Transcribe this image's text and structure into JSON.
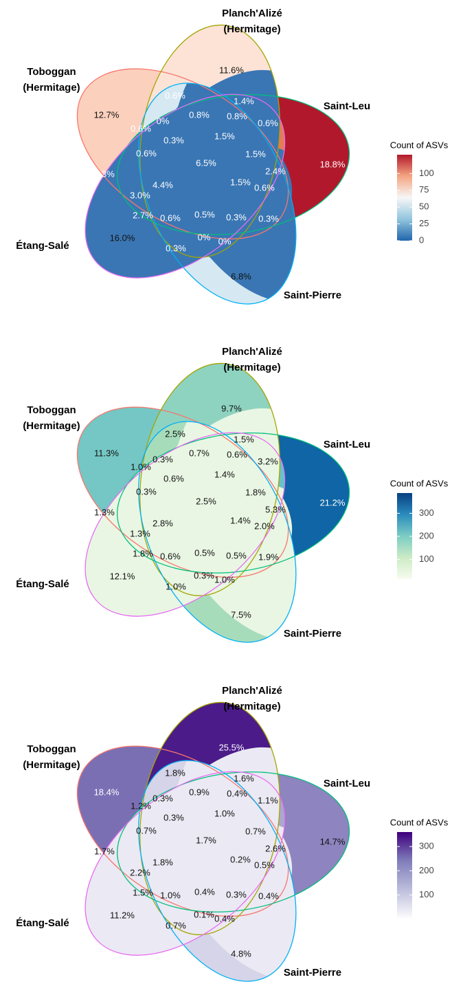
{
  "chart_data": [
    {
      "type": "venn",
      "sets": [
        {
          "name": [
            "Toboggan",
            "(Hermitage)"
          ],
          "color": "#f8766d",
          "fill": "#fbd0bd"
        },
        {
          "name": [
            "Planch'Alizé",
            "(Hermitage)"
          ],
          "color": "#a3a500",
          "fill": "#fce3d6"
        },
        {
          "name": [
            "Saint-Leu"
          ],
          "color": "#00bf7d",
          "fill": "#b2182b"
        },
        {
          "name": [
            "Étang-Salé"
          ],
          "color": "#00b0f6",
          "fill": "#d6e8f1"
        },
        {
          "name": [
            "Saint-Pierre"
          ],
          "color": "#e76bf3",
          "fill": "#e8795a"
        }
      ],
      "overlap_color": "#3a76b4",
      "values": [
        12.7,
        11.6,
        18.8,
        6.8,
        16.0,
        0.6,
        1.4,
        0.8,
        0.6,
        0.6,
        0,
        0.8,
        0.3,
        1.5,
        1.5,
        0.6,
        6.5,
        2.3,
        4.4,
        1.5,
        2.4,
        0.6,
        3.0,
        2.7,
        0.6,
        0.5,
        0.3,
        0.3,
        0.3,
        0,
        0
      ],
      "value_labels": [
        "12.7%",
        "11.6%",
        "18.8%",
        "6.8%",
        "16.0%",
        "0.6%",
        "1.4%",
        "0.8%",
        "0.6%",
        "0.6%",
        "0%",
        "0.8%",
        "0.3%",
        "1.5%",
        "1.5%",
        "0.6%",
        "6.5%",
        "2.3%",
        "4.4%",
        "1.5%",
        "2.4%",
        "0.6%",
        "3.0%",
        "2.7%",
        "0.6%",
        "0.5%",
        "0.3%",
        "0.3%",
        "0.3%",
        "0%",
        "0%"
      ],
      "legend": {
        "title": "Count of ASVs",
        "colors": [
          "#2166ac",
          "#92c5de",
          "#f7f7f7",
          "#f4a582",
          "#b2182b"
        ],
        "lim": [
          0,
          128
        ],
        "ticks": [
          0,
          25,
          50,
          75,
          100
        ]
      }
    },
    {
      "type": "venn",
      "sets": [
        {
          "name": [
            "Toboggan",
            "(Hermitage)"
          ],
          "color": "#f8766d",
          "fill": "#74c7c4"
        },
        {
          "name": [
            "Planch'Alizé",
            "(Hermitage)"
          ],
          "color": "#a3a500",
          "fill": "#8ed3c0"
        },
        {
          "name": [
            "Saint-Leu"
          ],
          "color": "#00bf7d",
          "fill": "#0f65a5"
        },
        {
          "name": [
            "Étang-Salé"
          ],
          "color": "#00b0f6",
          "fill": "#a7dcbb"
        },
        {
          "name": [
            "Saint-Pierre"
          ],
          "color": "#e76bf3",
          "fill": "#6ac2c8"
        }
      ],
      "overlap_color": "#e9f6e3",
      "values": [
        11.3,
        9.7,
        21.2,
        7.5,
        12.1,
        2.5,
        1.5,
        0.6,
        3.2,
        1.0,
        0.3,
        0.7,
        0.6,
        1.4,
        1.8,
        0.3,
        2.5,
        1.3,
        2.8,
        1.4,
        5.3,
        2.0,
        1.3,
        1.8,
        0.6,
        0.5,
        0.5,
        1.9,
        1.0,
        0.3,
        1.0
      ],
      "value_labels": [
        "11.3%",
        "9.7%",
        "21.2%",
        "7.5%",
        "12.1%",
        "2.5%",
        "1.5%",
        "0.6%",
        "3.2%",
        "1.0%",
        "0.3%",
        "0.7%",
        "0.6%",
        "1.4%",
        "1.8%",
        "0.3%",
        "2.5%",
        "1.3%",
        "2.8%",
        "1.4%",
        "5.3%",
        "2.0%",
        "1.3%",
        "1.8%",
        "0.6%",
        "0.5%",
        "0.5%",
        "1.9%",
        "1.0%",
        "0.3%",
        "1.0%"
      ],
      "legend": {
        "title": "Count of ASVs",
        "colors": [
          "#f7fcf0",
          "#ccebc5",
          "#7bccc4",
          "#2b8cbe",
          "#084081"
        ],
        "lim": [
          15,
          388
        ],
        "ticks": [
          100,
          200,
          300
        ]
      }
    },
    {
      "type": "venn",
      "sets": [
        {
          "name": [
            "Toboggan",
            "(Hermitage)"
          ],
          "color": "#f8766d",
          "fill": "#7b6fb4"
        },
        {
          "name": [
            "Planch'Alizé",
            "(Hermitage)"
          ],
          "color": "#a3a500",
          "fill": "#4b1b89"
        },
        {
          "name": [
            "Saint-Leu"
          ],
          "color": "#00bf7d",
          "fill": "#8e84bf"
        },
        {
          "name": [
            "Étang-Salé"
          ],
          "color": "#00b0f6",
          "fill": "#d5d4e8"
        },
        {
          "name": [
            "Saint-Pierre"
          ],
          "color": "#e76bf3",
          "fill": "#aba8d0"
        }
      ],
      "overlap_color": "#ebe9f3",
      "values": [
        18.4,
        25.5,
        14.7,
        4.8,
        11.2,
        1.8,
        1.6,
        0.4,
        1.1,
        1.2,
        0.3,
        0.9,
        0.3,
        1.0,
        0.7,
        0.7,
        1.7,
        1.7,
        1.8,
        0.2,
        2.6,
        0.5,
        2.2,
        1.5,
        1.0,
        0.4,
        0.3,
        0.4,
        0.7,
        0.1,
        0.4
      ],
      "value_labels": [
        "18.4%",
        "25.5%",
        "14.7%",
        "4.8%",
        "11.2%",
        "1.8%",
        "1.6%",
        "0.4%",
        "1.1%",
        "1.2%",
        "0.3%",
        "0.9%",
        "0.3%",
        "1.0%",
        "0.7%",
        "0.7%",
        "1.7%",
        "1.7%",
        "1.8%",
        "0.2%",
        "2.6%",
        "0.5%",
        "2.2%",
        "1.5%",
        "1.0%",
        "0.4%",
        "0.3%",
        "0.4%",
        "0.7%",
        "0.1%",
        "0.4%"
      ],
      "legend": {
        "title": "Count of ASVs",
        "colors": [
          "#fcfbfd",
          "#bcbddc",
          "#807dba",
          "#3f007d"
        ],
        "lim": [
          5,
          360
        ],
        "ticks": [
          100,
          200,
          300
        ]
      }
    }
  ]
}
